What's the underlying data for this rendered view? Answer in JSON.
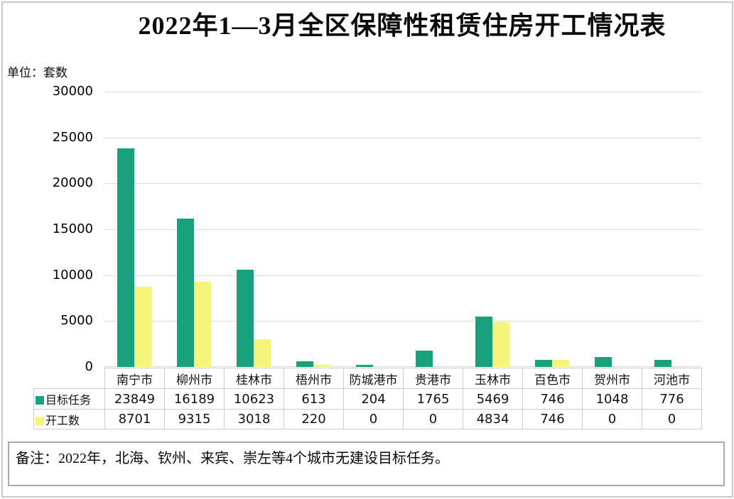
{
  "header": {
    "title": "2022年1—3月全区保障性租赁住房开工情况表"
  },
  "chart": {
    "unit_label": "单位：套数"
  },
  "chart_data": {
    "type": "bar",
    "title": "2022年1—3月全区保障性租赁住房开工情况表",
    "unit_label": "单位：套数",
    "categories": [
      "南宁市",
      "柳州市",
      "桂林市",
      "梧州市",
      "防城港市",
      "贵港市",
      "玉林市",
      "百色市",
      "贺州市",
      "河池市"
    ],
    "series": [
      {
        "name": "目标任务",
        "color": "#18A17B",
        "values": [
          23849,
          16189,
          10623,
          613,
          204,
          1765,
          5469,
          746,
          1048,
          776
        ]
      },
      {
        "name": "开工数",
        "color": "#F5F57B",
        "values": [
          8701,
          9315,
          3018,
          220,
          0,
          0,
          4834,
          746,
          0,
          0
        ]
      }
    ],
    "xlabel": "",
    "ylabel": "单位：套数",
    "ylim": [
      0,
      30000
    ],
    "yticks": [
      0,
      5000,
      10000,
      15000,
      20000,
      25000,
      30000
    ],
    "grid": true,
    "legend_position": "left-of-data-table-rows",
    "data_table_shown": true
  },
  "note": {
    "text": "备注：2022年，北海、钦州、来宾、崇左等4个城市无建设目标任务。"
  },
  "colors": {
    "target_series": "#18A17B",
    "started_series": "#F5F57B",
    "gridline": "#dbdbdb",
    "table_border": "#cccccc",
    "note_border": "#a9a9a9",
    "page_border": "#c9c9c9"
  }
}
